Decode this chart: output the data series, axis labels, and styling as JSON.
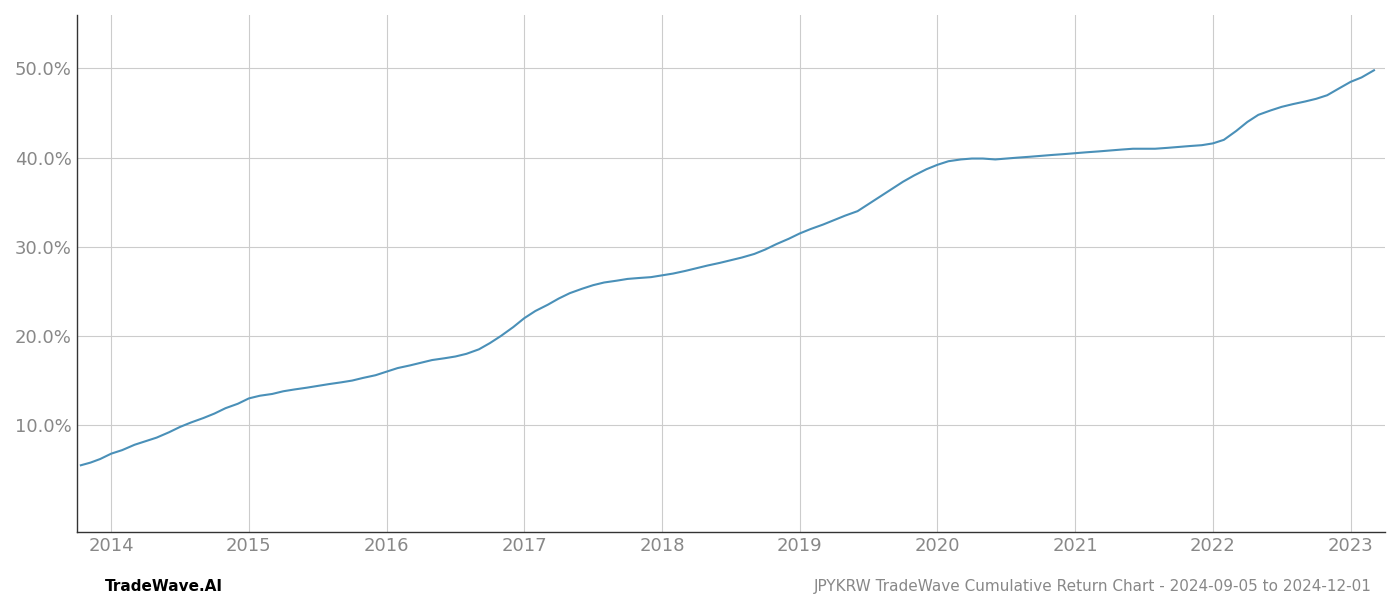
{
  "footer_left": "TradeWave.AI",
  "footer_right": "JPYKRW TradeWave Cumulative Return Chart - 2024-09-05 to 2024-12-01",
  "line_color": "#4a90b8",
  "background_color": "#ffffff",
  "grid_color": "#cccccc",
  "x_years": [
    2014,
    2015,
    2016,
    2017,
    2018,
    2019,
    2020,
    2021,
    2022,
    2023
  ],
  "xlim": [
    2013.75,
    2023.25
  ],
  "ylim": [
    -2,
    56
  ],
  "yticks": [
    10,
    20,
    30,
    40,
    50
  ],
  "curve_x": [
    2013.78,
    2013.85,
    2013.92,
    2014.0,
    2014.08,
    2014.17,
    2014.25,
    2014.33,
    2014.42,
    2014.5,
    2014.58,
    2014.67,
    2014.75,
    2014.83,
    2014.92,
    2015.0,
    2015.08,
    2015.17,
    2015.25,
    2015.33,
    2015.42,
    2015.5,
    2015.58,
    2015.67,
    2015.75,
    2015.83,
    2015.92,
    2016.0,
    2016.08,
    2016.17,
    2016.25,
    2016.33,
    2016.42,
    2016.5,
    2016.58,
    2016.67,
    2016.75,
    2016.83,
    2016.92,
    2017.0,
    2017.08,
    2017.17,
    2017.25,
    2017.33,
    2017.42,
    2017.5,
    2017.58,
    2017.67,
    2017.75,
    2017.83,
    2017.92,
    2018.0,
    2018.08,
    2018.17,
    2018.25,
    2018.33,
    2018.42,
    2018.5,
    2018.58,
    2018.67,
    2018.75,
    2018.83,
    2018.92,
    2019.0,
    2019.08,
    2019.17,
    2019.25,
    2019.33,
    2019.42,
    2019.5,
    2019.58,
    2019.67,
    2019.75,
    2019.83,
    2019.92,
    2020.0,
    2020.08,
    2020.17,
    2020.25,
    2020.33,
    2020.42,
    2020.5,
    2020.58,
    2020.67,
    2020.75,
    2020.83,
    2020.92,
    2021.0,
    2021.08,
    2021.17,
    2021.25,
    2021.33,
    2021.42,
    2021.5,
    2021.58,
    2021.67,
    2021.75,
    2021.83,
    2021.92,
    2022.0,
    2022.08,
    2022.17,
    2022.25,
    2022.33,
    2022.42,
    2022.5,
    2022.58,
    2022.67,
    2022.75,
    2022.83,
    2022.92,
    2023.0,
    2023.08,
    2023.17
  ],
  "curve_y": [
    5.5,
    5.8,
    6.2,
    6.8,
    7.2,
    7.8,
    8.2,
    8.6,
    9.2,
    9.8,
    10.3,
    10.8,
    11.3,
    11.9,
    12.4,
    13.0,
    13.3,
    13.5,
    13.8,
    14.0,
    14.2,
    14.4,
    14.6,
    14.8,
    15.0,
    15.3,
    15.6,
    16.0,
    16.4,
    16.7,
    17.0,
    17.3,
    17.5,
    17.7,
    18.0,
    18.5,
    19.2,
    20.0,
    21.0,
    22.0,
    22.8,
    23.5,
    24.2,
    24.8,
    25.3,
    25.7,
    26.0,
    26.2,
    26.4,
    26.5,
    26.6,
    26.8,
    27.0,
    27.3,
    27.6,
    27.9,
    28.2,
    28.5,
    28.8,
    29.2,
    29.7,
    30.3,
    30.9,
    31.5,
    32.0,
    32.5,
    33.0,
    33.5,
    34.0,
    34.8,
    35.6,
    36.5,
    37.3,
    38.0,
    38.7,
    39.2,
    39.6,
    39.8,
    39.9,
    39.9,
    39.8,
    39.9,
    40.0,
    40.1,
    40.2,
    40.3,
    40.4,
    40.5,
    40.6,
    40.7,
    40.8,
    40.9,
    41.0,
    41.0,
    41.0,
    41.1,
    41.2,
    41.3,
    41.4,
    41.6,
    42.0,
    43.0,
    44.0,
    44.8,
    45.3,
    45.7,
    46.0,
    46.3,
    46.6,
    47.0,
    47.8,
    48.5,
    49.0,
    49.8
  ],
  "left_spine_color": "#333333",
  "bottom_spine_color": "#333333",
  "tick_color": "#888888",
  "tick_fontsize": 13,
  "footer_fontsize": 11,
  "footer_left_color": "#000000",
  "footer_right_color": "#888888"
}
